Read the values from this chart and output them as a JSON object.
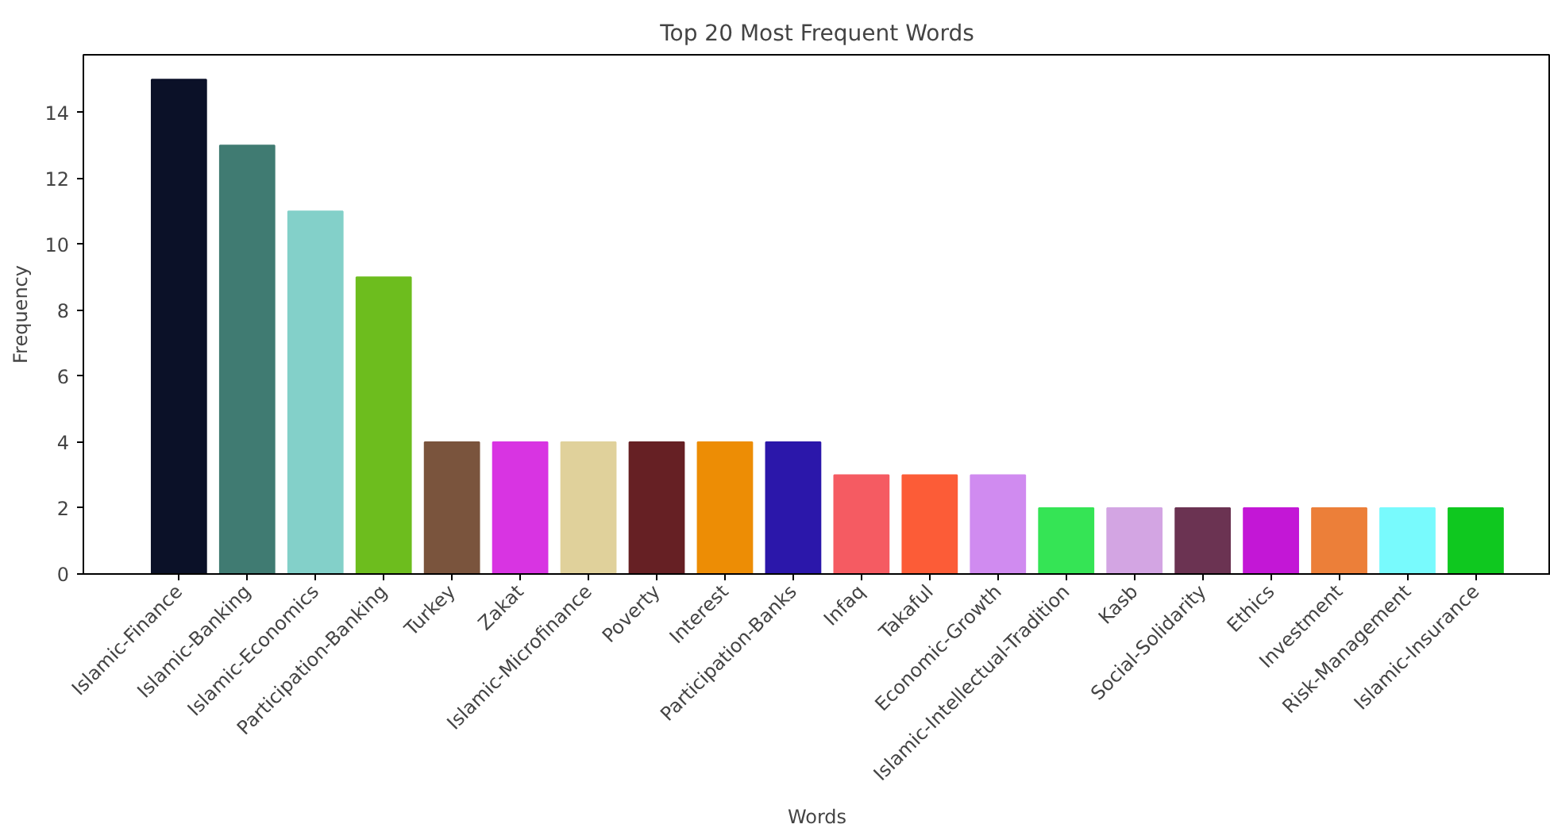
{
  "chart_data": {
    "type": "bar",
    "title": "Top 20 Most Frequent Words",
    "xlabel": "Words",
    "ylabel": "Frequency",
    "categories": [
      "Islamic-Finance",
      "Islamic-Banking",
      "Islamic-Economics",
      "Participation-Banking",
      "Turkey",
      "Zakat",
      "Islamic-Microfinance",
      "Poverty",
      "Interest",
      "Participation-Banks",
      "Infaq",
      "Takaful",
      "Economic-Growth",
      "Islamic-Intellectual-Tradition",
      "Kasb",
      "Social-Solidarity",
      "Ethics",
      "Investment",
      "Risk-Management",
      "Islamic-Insurance"
    ],
    "values": [
      15,
      13,
      11,
      9,
      4,
      4,
      4,
      4,
      4,
      4,
      3,
      3,
      3,
      2,
      2,
      2,
      2,
      2,
      2,
      2
    ],
    "colors": [
      "#0b1128",
      "#407b72",
      "#83d0c9",
      "#6dbd1e",
      "#7a543d",
      "#d834e2",
      "#e0d19b",
      "#662024",
      "#ed8d05",
      "#2b17aa",
      "#f55b62",
      "#fc5c37",
      "#d08bf0",
      "#35e455",
      "#d3a5e3",
      "#6b3352",
      "#c317d6",
      "#ec7f39",
      "#78fafd",
      "#0fc81f"
    ],
    "ylim": [
      0,
      15.75
    ],
    "yticks": [
      0,
      2,
      4,
      6,
      8,
      10,
      12,
      14
    ],
    "grid": false
  }
}
